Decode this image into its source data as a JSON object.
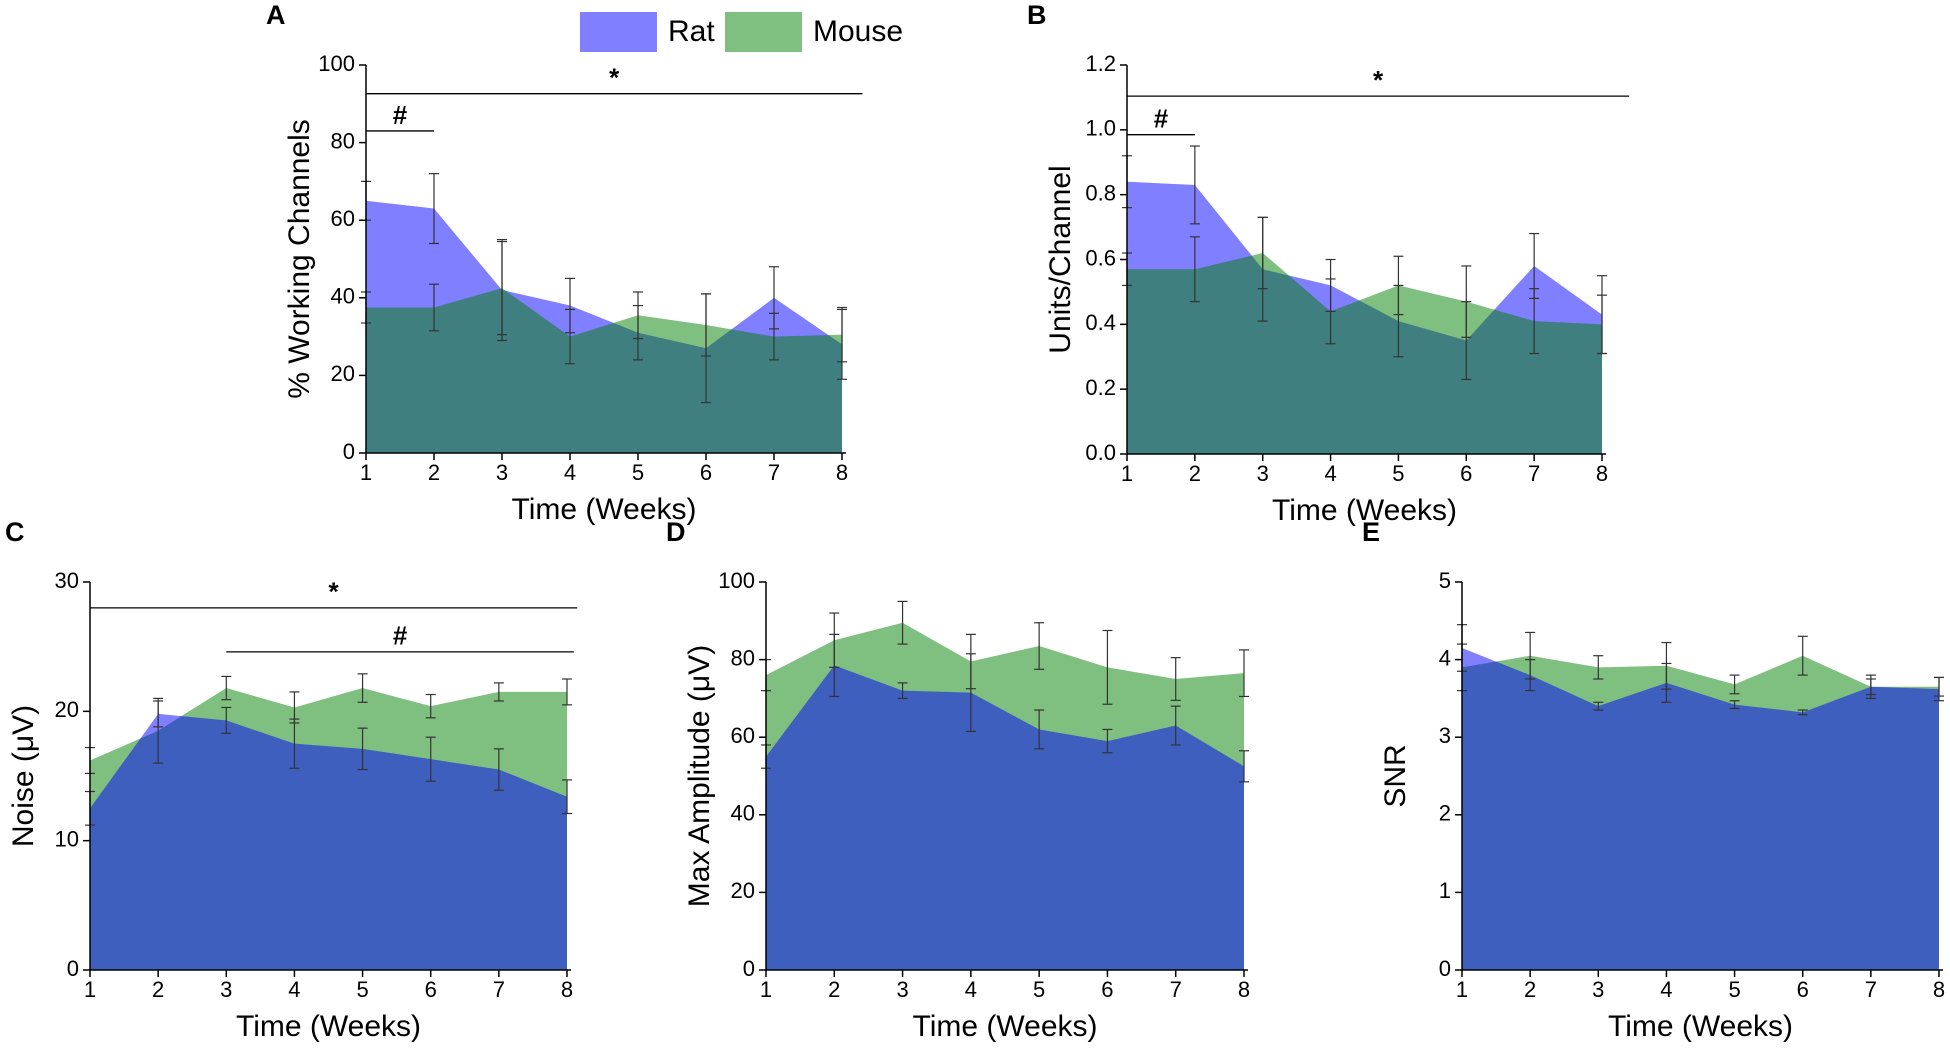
{
  "chart_data": [
    {
      "type": "area",
      "label": "A",
      "ylabel": "% Working Channels",
      "xlabel": "Time (Weeks)",
      "legend": "top",
      "x": [
        1,
        2,
        3,
        4,
        5,
        6,
        7,
        8
      ],
      "xlim": [
        1,
        8
      ],
      "xticks": [
        1,
        2,
        3,
        4,
        5,
        6,
        7,
        8
      ],
      "ylim": [
        0,
        100
      ],
      "yticks": [
        0,
        20,
        40,
        60,
        80,
        100
      ],
      "series": [
        {
          "name": "Rat",
          "color": "#7f7fff",
          "opacity": 1,
          "values": [
            65,
            63,
            42,
            38,
            31,
            27,
            40,
            28
          ],
          "errors": [
            5,
            9,
            13,
            7,
            7,
            14,
            8,
            9
          ]
        },
        {
          "name": "Mouse",
          "color": "#008000",
          "opacity": 0.5,
          "values": [
            37.5,
            37.5,
            42.5,
            30,
            35.5,
            33,
            30,
            30.5
          ],
          "errors": [
            4,
            6,
            12,
            7,
            6,
            8,
            6,
            7
          ]
        }
      ],
      "annotations": [
        {
          "text": "*",
          "span": [
            1,
            8.3
          ],
          "y": 92.6
        },
        {
          "text": "#",
          "span": [
            1,
            2
          ],
          "y": 83
        }
      ]
    },
    {
      "type": "area",
      "label": "B",
      "ylabel": "Units/Channel",
      "xlabel": "Time (Weeks)",
      "x": [
        1,
        2,
        3,
        4,
        5,
        6,
        7,
        8
      ],
      "xlim": [
        1,
        8
      ],
      "xticks": [
        1,
        2,
        3,
        4,
        5,
        6,
        7,
        8
      ],
      "ylim": [
        0,
        1.2
      ],
      "yticks": [
        {
          "value": 0,
          "label": "0.0"
        },
        0.2,
        0.4,
        0.6,
        0.8,
        {
          "value": 1,
          "label": "1.0"
        },
        1.2
      ],
      "series": [
        {
          "color": "#7f7fff",
          "opacity": 1,
          "values": [
            0.84,
            0.83,
            0.57,
            0.52,
            0.41,
            0.35,
            0.58,
            0.43
          ],
          "errors": [
            0.08,
            0.12,
            0.16,
            0.08,
            0.11,
            0.12,
            0.1,
            0.12
          ]
        },
        {
          "color": "#008000",
          "opacity": 0.5,
          "values": [
            0.57,
            0.57,
            0.62,
            0.44,
            0.52,
            0.47,
            0.41,
            0.4
          ],
          "errors": [
            0.05,
            0.1,
            0.11,
            0.1,
            0.09,
            0.11,
            0.1,
            0.09
          ]
        }
      ],
      "annotations": [
        {
          "text": "*",
          "span": [
            1,
            8.4
          ],
          "y": 1.104
        },
        {
          "text": "#",
          "span": [
            1,
            2
          ],
          "y": 0.985
        }
      ]
    },
    {
      "type": "area",
      "label": "C",
      "ylabel": "Noise (μV)",
      "xlabel": "Time (Weeks)",
      "x": [
        1,
        2,
        3,
        4,
        5,
        6,
        7,
        8
      ],
      "xlim": [
        1,
        8
      ],
      "xticks": [
        1,
        2,
        3,
        4,
        5,
        6,
        7,
        8
      ],
      "ylim": [
        0,
        30
      ],
      "yticks": [
        0,
        10,
        20,
        30
      ],
      "series": [
        {
          "color": "#7fbf7f",
          "opacity": 1,
          "values": [
            16.2,
            18.5,
            21.8,
            20.3,
            21.8,
            20.4,
            21.5,
            21.5
          ],
          "errors": [
            1,
            2.5,
            0.9,
            1.2,
            1.1,
            0.9,
            0.7,
            1
          ]
        },
        {
          "color": "#0000ff",
          "opacity": 0.5,
          "values": [
            12.5,
            19.8,
            19.3,
            17.5,
            17.1,
            16.3,
            15.5,
            13.4
          ],
          "errors": [
            1.3,
            1,
            1,
            1.9,
            1.6,
            1.7,
            1.6,
            1.3
          ]
        }
      ],
      "annotations": [
        {
          "text": "*",
          "span": [
            1,
            8.15
          ],
          "y": 28
        },
        {
          "text": "#",
          "span": [
            3,
            8.1
          ],
          "y": 24.6
        }
      ]
    },
    {
      "type": "area",
      "label": "D",
      "ylabel": "Max Amplitude (μV)",
      "xlabel": "Time (Weeks)",
      "x": [
        1,
        2,
        3,
        4,
        5,
        6,
        7,
        8
      ],
      "xlim": [
        1,
        8
      ],
      "xticks": [
        1,
        2,
        3,
        4,
        5,
        6,
        7,
        8
      ],
      "ylim": [
        0,
        100
      ],
      "yticks": [
        0,
        20,
        40,
        60,
        80,
        100
      ],
      "series": [
        {
          "color": "#7fbf7f",
          "opacity": 1,
          "values": [
            76,
            85,
            89.5,
            79.5,
            83.5,
            78,
            75,
            76.5
          ],
          "errors": [
            4,
            7,
            5.5,
            7,
            6,
            9.5,
            5.5,
            6
          ]
        },
        {
          "color": "#0000ff",
          "opacity": 0.5,
          "values": [
            55,
            78.5,
            72,
            71.5,
            62,
            59,
            63,
            52.5
          ],
          "errors": [
            3,
            8,
            2,
            10,
            5,
            3,
            5,
            4
          ]
        }
      ]
    },
    {
      "type": "area",
      "label": "E",
      "ylabel": "SNR",
      "xlabel": "Time (Weeks)",
      "x": [
        1,
        2,
        3,
        4,
        5,
        6,
        7,
        8
      ],
      "xlim": [
        1,
        8
      ],
      "xticks": [
        1,
        2,
        3,
        4,
        5,
        6,
        7,
        8
      ],
      "ylim": [
        0,
        5
      ],
      "yticks": [
        0,
        1,
        2,
        3,
        4,
        5
      ],
      "series": [
        {
          "color": "#7fbf7f",
          "opacity": 1,
          "values": [
            3.9,
            4.05,
            3.9,
            3.92,
            3.68,
            4.05,
            3.65,
            3.65
          ],
          "errors": [
            0.3,
            0.3,
            0.15,
            0.3,
            0.12,
            0.25,
            0.15,
            0.12
          ]
        },
        {
          "color": "#0000ff",
          "opacity": 0.5,
          "values": [
            4.15,
            3.8,
            3.4,
            3.7,
            3.42,
            3.32,
            3.65,
            3.62
          ],
          "errors": [
            0.3,
            0.2,
            0.05,
            0.25,
            0.05,
            0.03,
            0.1,
            0.15
          ]
        }
      ]
    }
  ]
}
